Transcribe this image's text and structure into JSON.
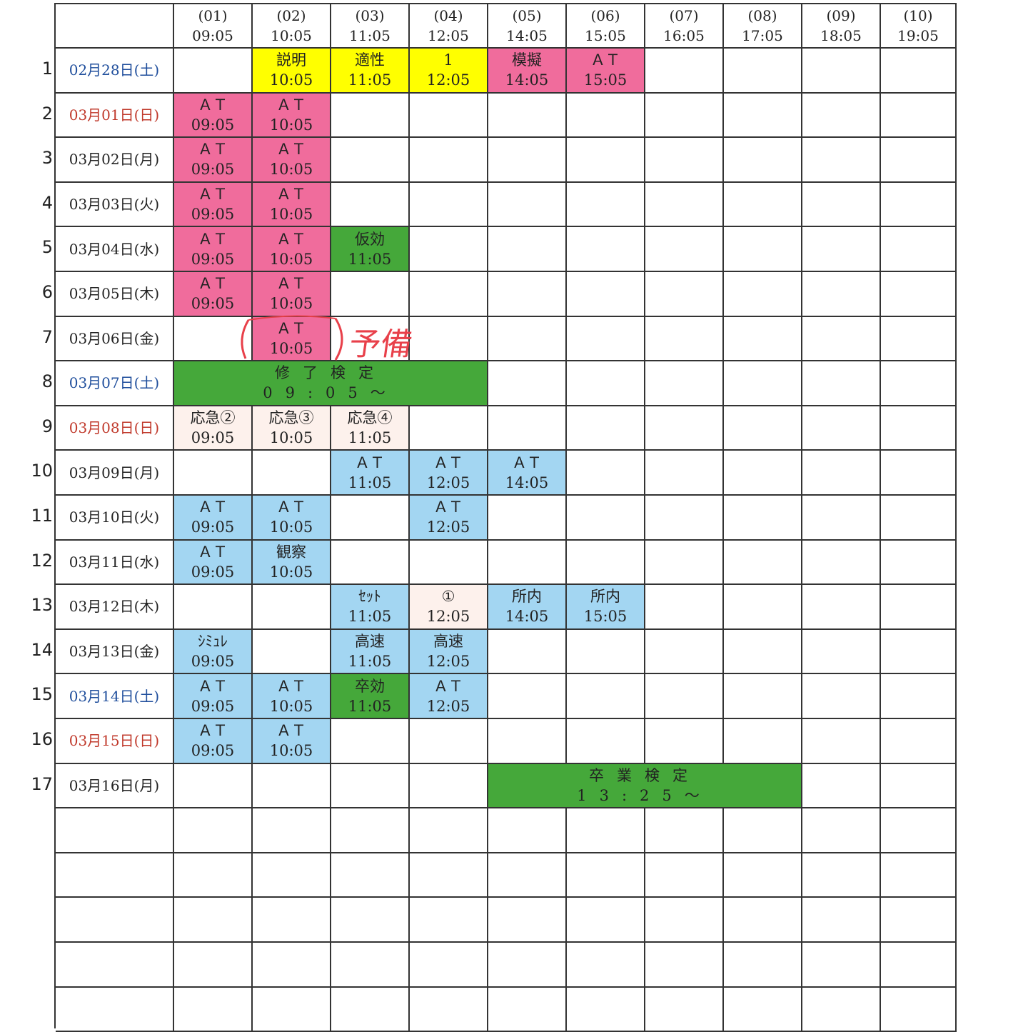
{
  "colors": {
    "yellow": "#ffff00",
    "pink": "#f06c9c",
    "green": "#45a83a",
    "blue": "#a3d6f2",
    "peach": "#fdf1ec",
    "saturday": "#1f4e9c",
    "sunday": "#c0392b",
    "weekday": "#222222",
    "handwriting": "#e8404a"
  },
  "header": [
    {
      "num": "(01)",
      "time": "09:05"
    },
    {
      "num": "(02)",
      "time": "10:05"
    },
    {
      "num": "(03)",
      "time": "11:05"
    },
    {
      "num": "(04)",
      "time": "12:05"
    },
    {
      "num": "(05)",
      "time": "14:05"
    },
    {
      "num": "(06)",
      "time": "15:05"
    },
    {
      "num": "(07)",
      "time": "16:05"
    },
    {
      "num": "(08)",
      "time": "17:05"
    },
    {
      "num": "(09)",
      "time": "18:05"
    },
    {
      "num": "(10)",
      "time": "19:05"
    }
  ],
  "rows": [
    {
      "no": "1",
      "date": "02月28日(土)",
      "day": "saturday",
      "cells": [
        null,
        {
          "l": "説明",
          "t": "10:05",
          "c": "yellow"
        },
        {
          "l": "適性",
          "t": "11:05",
          "c": "yellow"
        },
        {
          "l": "1",
          "t": "12:05",
          "c": "yellow"
        },
        {
          "l": "模擬",
          "t": "14:05",
          "c": "pink"
        },
        {
          "l": "ＡＴ",
          "t": "15:05",
          "c": "pink"
        }
      ]
    },
    {
      "no": "2",
      "date": "03月01日(日)",
      "day": "sunday",
      "cells": [
        {
          "l": "ＡＴ",
          "t": "09:05",
          "c": "pink"
        },
        {
          "l": "ＡＴ",
          "t": "10:05",
          "c": "pink"
        }
      ]
    },
    {
      "no": "3",
      "date": "03月02日(月)",
      "day": "weekday",
      "cells": [
        {
          "l": "ＡＴ",
          "t": "09:05",
          "c": "pink"
        },
        {
          "l": "ＡＴ",
          "t": "10:05",
          "c": "pink"
        }
      ]
    },
    {
      "no": "4",
      "date": "03月03日(火)",
      "day": "weekday",
      "cells": [
        {
          "l": "ＡＴ",
          "t": "09:05",
          "c": "pink"
        },
        {
          "l": "ＡＴ",
          "t": "10:05",
          "c": "pink"
        }
      ]
    },
    {
      "no": "5",
      "date": "03月04日(水)",
      "day": "weekday",
      "cells": [
        {
          "l": "ＡＴ",
          "t": "09:05",
          "c": "pink"
        },
        {
          "l": "ＡＴ",
          "t": "10:05",
          "c": "pink"
        },
        {
          "l": "仮効",
          "t": "11:05",
          "c": "green"
        }
      ]
    },
    {
      "no": "6",
      "date": "03月05日(木)",
      "day": "weekday",
      "cells": [
        {
          "l": "ＡＴ",
          "t": "09:05",
          "c": "pink"
        },
        {
          "l": "ＡＴ",
          "t": "10:05",
          "c": "pink"
        }
      ]
    },
    {
      "no": "7",
      "date": "03月06日(金)",
      "day": "weekday",
      "cells": [
        null,
        {
          "l": "ＡＴ",
          "t": "10:05",
          "c": "pink"
        }
      ]
    },
    {
      "no": "8",
      "date": "03月07日(土)",
      "day": "saturday",
      "cells": [
        {
          "l": "修了検定",
          "t": "09:05～",
          "c": "green",
          "span": 4
        }
      ]
    },
    {
      "no": "9",
      "date": "03月08日(日)",
      "day": "sunday",
      "cells": [
        {
          "l": "応急②",
          "t": "09:05",
          "c": "peach"
        },
        {
          "l": "応急③",
          "t": "10:05",
          "c": "peach"
        },
        {
          "l": "応急④",
          "t": "11:05",
          "c": "peach"
        }
      ]
    },
    {
      "no": "10",
      "date": "03月09日(月)",
      "day": "weekday",
      "cells": [
        null,
        null,
        {
          "l": "ＡＴ",
          "t": "11:05",
          "c": "blue"
        },
        {
          "l": "ＡＴ",
          "t": "12:05",
          "c": "blue"
        },
        {
          "l": "ＡＴ",
          "t": "14:05",
          "c": "blue"
        }
      ]
    },
    {
      "no": "11",
      "date": "03月10日(火)",
      "day": "weekday",
      "cells": [
        {
          "l": "ＡＴ",
          "t": "09:05",
          "c": "blue"
        },
        {
          "l": "ＡＴ",
          "t": "10:05",
          "c": "blue"
        },
        null,
        {
          "l": "ＡＴ",
          "t": "12:05",
          "c": "blue"
        }
      ]
    },
    {
      "no": "12",
      "date": "03月11日(水)",
      "day": "weekday",
      "cells": [
        {
          "l": "ＡＴ",
          "t": "09:05",
          "c": "blue"
        },
        {
          "l": "観察",
          "t": "10:05",
          "c": "blue"
        }
      ]
    },
    {
      "no": "13",
      "date": "03月12日(木)",
      "day": "weekday",
      "cells": [
        null,
        null,
        {
          "l": "ｾｯﾄ",
          "t": "11:05",
          "c": "blue"
        },
        {
          "l": "①",
          "t": "12:05",
          "c": "peach"
        },
        {
          "l": "所内",
          "t": "14:05",
          "c": "blue"
        },
        {
          "l": "所内",
          "t": "15:05",
          "c": "blue"
        }
      ]
    },
    {
      "no": "14",
      "date": "03月13日(金)",
      "day": "weekday",
      "cells": [
        {
          "l": "ｼﾐｭﾚ",
          "t": "09:05",
          "c": "blue"
        },
        null,
        {
          "l": "高速",
          "t": "11:05",
          "c": "blue"
        },
        {
          "l": "高速",
          "t": "12:05",
          "c": "blue"
        }
      ]
    },
    {
      "no": "15",
      "date": "03月14日(土)",
      "day": "saturday",
      "cells": [
        {
          "l": "ＡＴ",
          "t": "09:05",
          "c": "blue"
        },
        {
          "l": "ＡＴ",
          "t": "10:05",
          "c": "blue"
        },
        {
          "l": "卒効",
          "t": "11:05",
          "c": "green"
        },
        {
          "l": "ＡＴ",
          "t": "12:05",
          "c": "blue"
        }
      ]
    },
    {
      "no": "16",
      "date": "03月15日(日)",
      "day": "sunday",
      "cells": [
        {
          "l": "ＡＴ",
          "t": "09:05",
          "c": "blue"
        },
        {
          "l": "ＡＴ",
          "t": "10:05",
          "c": "blue"
        }
      ]
    },
    {
      "no": "17",
      "date": "03月16日(月)",
      "day": "weekday",
      "cells": [
        null,
        null,
        null,
        null,
        {
          "l": "卒業検定",
          "t": "13:25～",
          "c": "green",
          "span": 4
        }
      ]
    }
  ],
  "empty_rows": 5,
  "annotation": {
    "text": "予備"
  }
}
